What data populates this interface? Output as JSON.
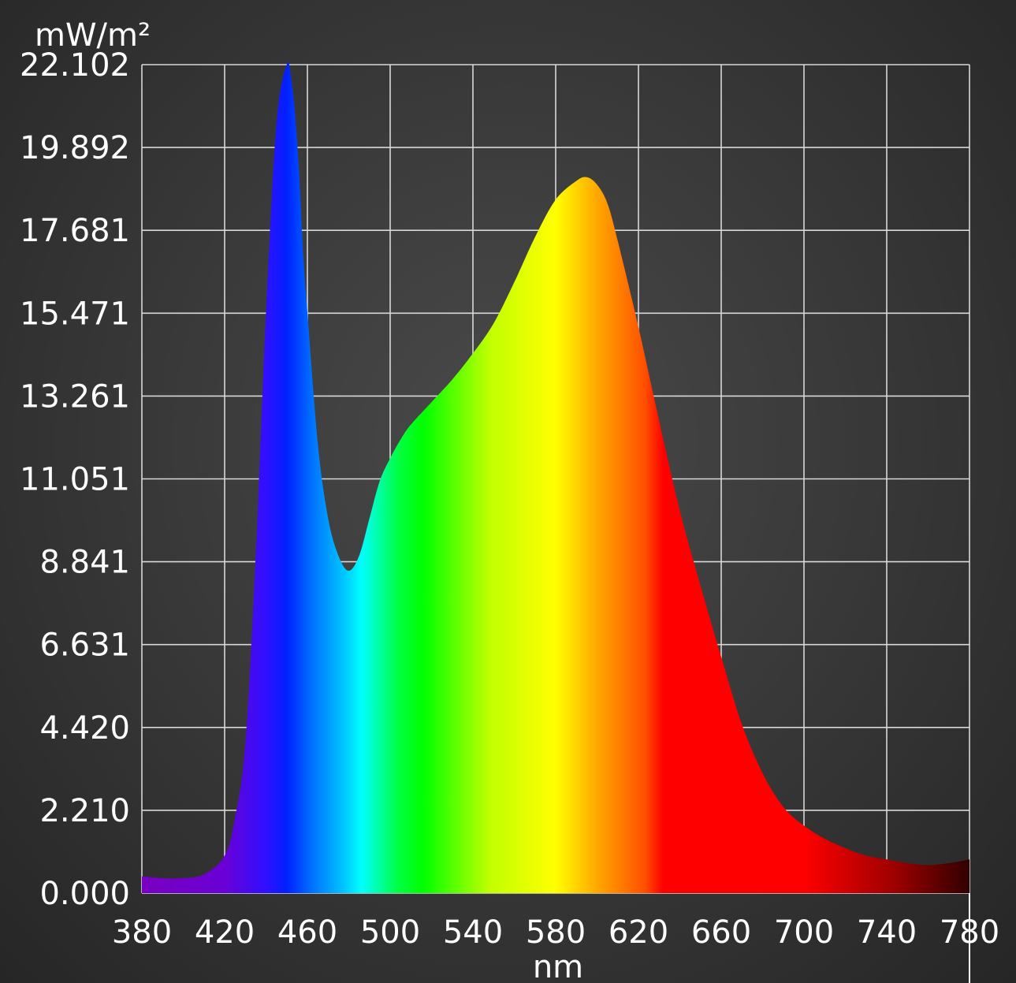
{
  "chart_data": {
    "type": "area",
    "title": "",
    "xlabel": "nm",
    "ylabel": "mW/m²",
    "xlim": [
      380,
      780
    ],
    "ylim": [
      0,
      22.102
    ],
    "grid": true,
    "legend": "none",
    "x_ticks": [
      "380",
      "420",
      "460",
      "500",
      "540",
      "580",
      "620",
      "660",
      "700",
      "740",
      "780"
    ],
    "y_ticks": [
      "0.000",
      "2.210",
      "4.420",
      "6.631",
      "8.841",
      "11.051",
      "13.261",
      "15.471",
      "17.681",
      "19.892",
      "22.102"
    ],
    "series": [
      {
        "x": [
          380,
          390,
          400,
          410,
          420,
          425,
          430,
          435,
          440,
          445,
          450,
          452,
          454,
          456,
          458,
          460,
          465,
          470,
          475,
          480,
          485,
          490,
          495,
          500,
          505,
          510,
          520,
          530,
          540,
          550,
          560,
          570,
          580,
          590,
          595,
          600,
          605,
          610,
          620,
          630,
          640,
          650,
          660,
          670,
          680,
          690,
          700,
          710,
          720,
          730,
          740,
          750,
          760,
          770,
          780
        ],
        "values": [
          0.45,
          0.4,
          0.4,
          0.5,
          1.0,
          2.0,
          4.0,
          9.0,
          15.5,
          20.5,
          22.1,
          21.8,
          20.8,
          19.2,
          17.0,
          15.5,
          12.0,
          10.0,
          9.0,
          8.6,
          9.0,
          10.0,
          11.0,
          11.6,
          12.1,
          12.5,
          13.1,
          13.7,
          14.4,
          15.2,
          16.3,
          17.5,
          18.5,
          19.0,
          19.1,
          18.9,
          18.4,
          17.4,
          15.1,
          12.6,
          10.2,
          8.2,
          6.3,
          4.5,
          3.2,
          2.3,
          1.8,
          1.45,
          1.2,
          1.0,
          0.9,
          0.8,
          0.75,
          0.8,
          0.9
        ]
      }
    ],
    "spectrum_colors": [
      "#7a00c0",
      "#6a00d6",
      "#2f10ff",
      "#0020ff",
      "#0070ff",
      "#00c8ff",
      "#00ffff",
      "#00ff40",
      "#00ff00",
      "#c0ff00",
      "#ffff00",
      "#ffa800",
      "#ff5000",
      "#ff0000",
      "#ff0000",
      "#9a0000",
      "#300000"
    ],
    "spectrum_stops_nm": [
      380,
      420,
      440,
      450,
      462,
      478,
      486,
      504,
      516,
      548,
      580,
      600,
      623,
      632,
      700,
      745,
      780
    ]
  }
}
